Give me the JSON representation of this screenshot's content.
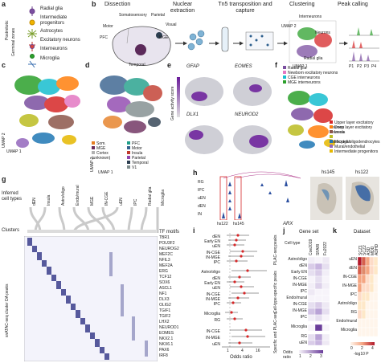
{
  "panels": {
    "a": {
      "label": "a",
      "cell_types": [
        "Radial glia",
        "Intermediate progenitors",
        "Astrocytes",
        "Excitatory neurons",
        "Interneurons",
        "Microglia"
      ],
      "side": [
        "Postmitotic",
        "Germinal zones"
      ]
    },
    "b": {
      "label": "b",
      "steps": [
        "Dissection",
        "Nuclear extraction",
        "Tn5 transposition and capture",
        "Clustering",
        "Peak calling"
      ],
      "regions": [
        "Somatosensory",
        "Parietal",
        "Motor",
        "PFC",
        "MGE",
        "Visual",
        "Temporal"
      ],
      "cluster_labels": [
        "Interneurons",
        "Neurons",
        "Radial glia"
      ],
      "peaks": [
        "P1",
        "P2",
        "P3",
        "P4",
        "P5"
      ],
      "axis": [
        "UMAP 2",
        "UMAP 1"
      ]
    },
    "c": {
      "label": "c",
      "axis": [
        "UMAP 1",
        "UMAP 2"
      ]
    },
    "d": {
      "label": "d",
      "legend": [
        {
          "name": "PFC",
          "color": "#1f9e89"
        },
        {
          "name": "Motor",
          "color": "#35608d"
        },
        {
          "name": "Insula",
          "color": "#c0392b"
        },
        {
          "name": "Parietal",
          "color": "#8e44ad"
        },
        {
          "name": "Temporal",
          "color": "#2c3e50"
        },
        {
          "name": "V1",
          "color": "#7f8c8d"
        },
        {
          "name": "Som.",
          "color": "#e67e22"
        },
        {
          "name": "MGE",
          "color": "#6b2d5c"
        },
        {
          "name": "Cortex (unknown)",
          "color": "#b0b0b0"
        }
      ],
      "axis": [
        "UMAP 2",
        "UMAP 1"
      ]
    },
    "e": {
      "label": "e",
      "genes": [
        "GFAP",
        "EOMES",
        "DLX1",
        "NEUROD2"
      ],
      "colorbar": "Gene activity score"
    },
    "f": {
      "label": "f",
      "legend": [
        {
          "name": "Radial glia",
          "color": "#7b4fa0"
        },
        {
          "name": "Newborn excitatory neurons",
          "color": "#e377c2"
        },
        {
          "name": "CGE interneurons",
          "color": "#17becf"
        },
        {
          "name": "MGE interneurons",
          "color": "#2ca02c"
        },
        {
          "name": "Upper layer excitatory neurons",
          "color": "#d62728"
        },
        {
          "name": "Deep layer excitatory neurons",
          "color": "#ff7f0e"
        },
        {
          "name": "Insula",
          "color": "#8c564b"
        },
        {
          "name": "Astrocytes/oligodendrocytes",
          "color": "#bcbd22"
        },
        {
          "name": "Microglia",
          "color": "#1f77b4"
        },
        {
          "name": "Mural/endothelial",
          "color": "#9467bd"
        },
        {
          "name": "Intermediate progenitors",
          "color": "#e6b800"
        }
      ]
    },
    "g": {
      "label": "g",
      "inferred": "Inferred cell types",
      "clusters_label": "Clusters",
      "y_label": "snATAC-seq cluster DA peaks",
      "top_types": [
        "dEN",
        "Insula",
        "Astro/oligo",
        "Endo/mural",
        "MGE",
        "IN-CGE",
        "uEN",
        "IPC",
        "Radial glia",
        "Microglia"
      ],
      "tf_header": "TF motifs",
      "tf_motifs": [
        "TBR1",
        "POU3F2",
        "NEUROG2",
        "MEF2C",
        "NFIL3",
        "MEF2A",
        "ERG",
        "TCF12",
        "SOX6",
        "ASCL1",
        "NF1",
        "DLX3",
        "OLIG2",
        "TGIF1",
        "TGIF2",
        "LHX2",
        "NEUROD1",
        "EOMES",
        "NKX2.1",
        "NKX6.1",
        "PAX6",
        "IRF8"
      ]
    },
    "h": {
      "label": "h",
      "tracks": [
        "RG",
        "IPC",
        "uEN",
        "dEN",
        "IN"
      ],
      "regions": [
        "hs122",
        "hs145"
      ],
      "gene": "ARX",
      "images": [
        "hs145",
        "hs122"
      ]
    },
    "i": {
      "label": "i",
      "xlabel": "Odds ratio",
      "x_ticks": [
        "1",
        "4",
        "16"
      ],
      "rows": [
        "dEN",
        "Early EN",
        "uEN",
        "IN-CGE",
        "IN-MGE",
        "IPC",
        "Astro/oligo",
        "dEN",
        "Early EN",
        "uEN",
        "IN-CGE",
        "IN-MGE",
        "IPC",
        "Microglia",
        "RG",
        "IN-CGE",
        "IN-MGE",
        "uEN"
      ],
      "groups": [
        "PLAC-seq peaks",
        "Cell-type-specific peaks",
        "Specific and PLAC-seq"
      ]
    },
    "j": {
      "label": "j",
      "title": "Gene set",
      "cols": [
        "Coe2019",
        "SFARI",
        "Fu2022"
      ],
      "row_title": "Cell type",
      "rows": [
        "Astro/oligo",
        "dEN",
        "Early EN",
        "IN-CGE",
        "IN-MGE",
        "IPC",
        "Endo/mural",
        "IN-CGE",
        "IN-MGE",
        "IPC",
        "Microglia",
        "RG",
        "uEN"
      ],
      "colorbar": "Odds ratio",
      "ticks": [
        "1",
        "2",
        "3"
      ]
    },
    "k": {
      "label": "k",
      "title": "Dataset",
      "cols": [
        "SCZ1",
        "SCZ2",
        "ASD",
        "MDD",
        "ADHD"
      ],
      "rows": [
        "uEN",
        "dEN",
        "IN-CGE",
        "IN-MGE",
        "IPC",
        "Astro/oligo",
        "RG",
        "Endo/mural",
        "Microglia"
      ],
      "colorbar": "-log10 P",
      "ticks": [
        "0",
        "2",
        "4"
      ]
    }
  }
}
